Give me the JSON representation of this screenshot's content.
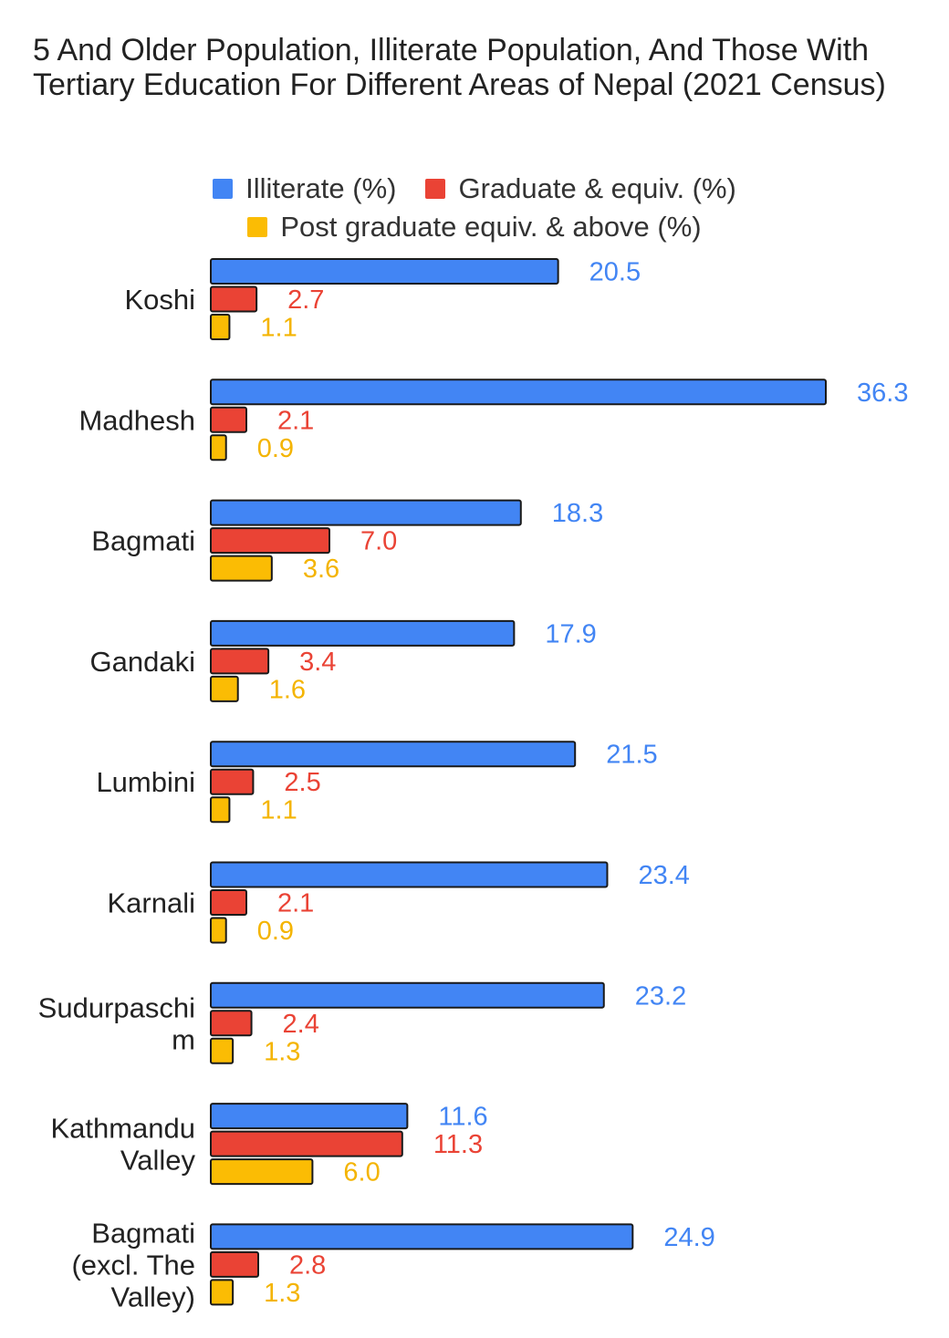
{
  "chart_data": {
    "type": "bar",
    "orientation": "horizontal",
    "title": "5 And Older Population, Illiterate Population, And Those With Tertiary Education For Different Areas of Nepal (2021 Census)",
    "categories": [
      [
        "Koshi"
      ],
      [
        "Madhesh"
      ],
      [
        "Bagmati"
      ],
      [
        "Gandaki"
      ],
      [
        "Lumbini"
      ],
      [
        "Karnali"
      ],
      [
        "Sudurpaschi",
        "m"
      ],
      [
        "Kathmandu",
        "Valley"
      ],
      [
        "Bagmati",
        "(excl. The",
        "Valley)"
      ]
    ],
    "series": [
      {
        "name": "Illiterate (%)",
        "color": "#4285f4",
        "label_color": "#4285f4",
        "values": [
          20.5,
          36.3,
          18.3,
          17.9,
          21.5,
          23.4,
          23.2,
          11.6,
          24.9
        ],
        "labels": [
          "20.5",
          "36.3",
          "18.3",
          "17.9",
          "21.5",
          "23.4",
          "23.2",
          "11.6",
          "24.9"
        ]
      },
      {
        "name": "Graduate & equiv. (%)",
        "color": "#ea4335",
        "label_color": "#ea4335",
        "values": [
          2.7,
          2.1,
          7.0,
          3.4,
          2.5,
          2.1,
          2.4,
          11.3,
          2.8
        ],
        "labels": [
          "2.7",
          "2.1",
          "7.0",
          "3.4",
          "2.5",
          "2.1",
          "2.4",
          "11.3",
          "2.8"
        ]
      },
      {
        "name": "Post graduate equiv. & above (%)",
        "color": "#fbbc04",
        "label_color": "#f4b400",
        "values": [
          1.1,
          0.9,
          3.6,
          1.6,
          1.1,
          0.9,
          1.3,
          6.0,
          1.3
        ],
        "labels": [
          "1.1",
          "0.9",
          "3.6",
          "1.6",
          "1.1",
          "0.9",
          "1.3",
          "6.0",
          "1.3"
        ]
      }
    ],
    "xlim": [
      0,
      36.3
    ],
    "grid": false,
    "legend_position": "top"
  }
}
